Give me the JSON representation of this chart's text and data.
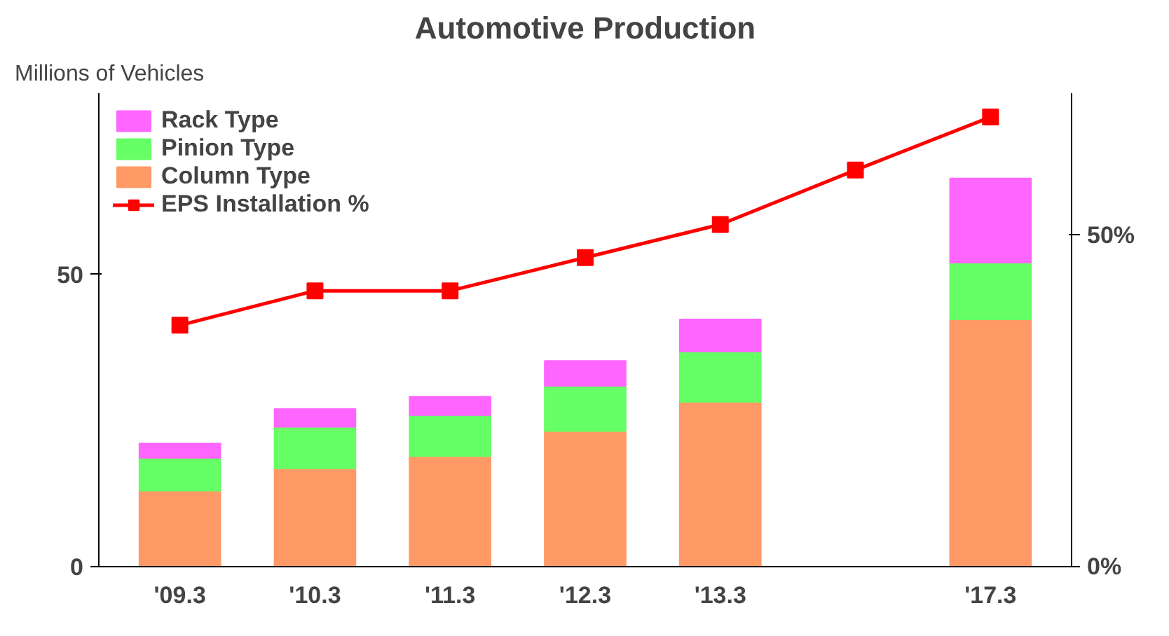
{
  "chart_data": {
    "type": "bar",
    "title": "Automotive Production",
    "ylabel": "Millions of Vehicles",
    "stacked": true,
    "categories": [
      "'09.3",
      "'10.3",
      "'11.3",
      "'12.3",
      "'13.3",
      null,
      "'17.3"
    ],
    "series": [
      {
        "name": "Column Type",
        "color": "#ff9966",
        "values": [
          13.0,
          16.8,
          18.9,
          23.2,
          28.2,
          null,
          42.3
        ]
      },
      {
        "name": "Pinion Type",
        "color": "#66ff66",
        "values": [
          5.6,
          7.1,
          7.0,
          7.7,
          8.6,
          null,
          9.7
        ]
      },
      {
        "name": "Rack Type",
        "color": "#ff66ff",
        "values": [
          2.5,
          3.1,
          3.2,
          4.3,
          5.5,
          null,
          14.4
        ]
      },
      {
        "name": "EPS Installation %",
        "type": "line",
        "axis": "y2",
        "color": "#ff0000",
        "marker": "square",
        "values": [
          36.4,
          41.6,
          41.6,
          46.6,
          51.6,
          59.8,
          67.8
        ]
      }
    ],
    "ylim": [
      0,
      81
    ],
    "yticks": [
      0,
      50
    ],
    "y2lim": [
      0,
      71.4
    ],
    "y2ticks": [
      {
        "value": 0,
        "label": "0%"
      },
      {
        "value": 50,
        "label": "50%"
      }
    ],
    "grid": false,
    "legend": "top left"
  }
}
